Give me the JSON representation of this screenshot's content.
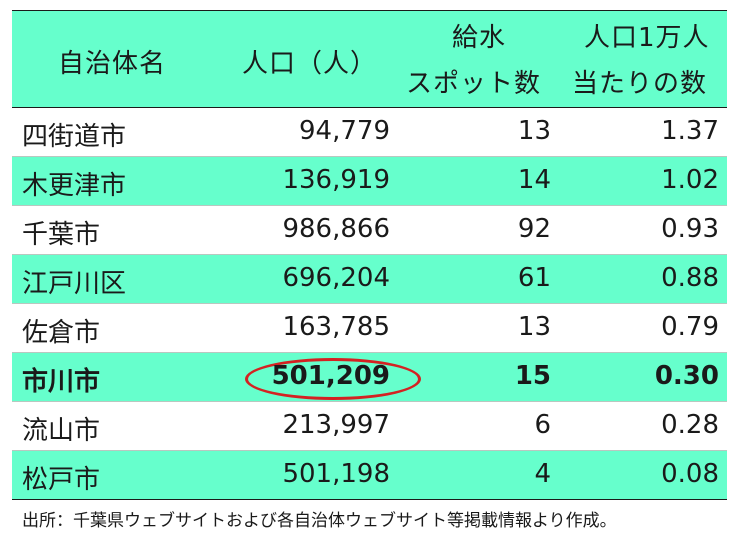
{
  "header": {
    "name": "自治体名",
    "population": "人口（人）",
    "spots_line1": "給水",
    "spots_line2": "スポット数",
    "per_line1": "人口1万人",
    "per_line2": "当たりの数"
  },
  "rows": [
    {
      "name": "四街道市",
      "population": "94,779",
      "spots": "13",
      "per": "1.37"
    },
    {
      "name": "木更津市",
      "population": "136,919",
      "spots": "14",
      "per": "1.02"
    },
    {
      "name": "千葉市",
      "population": "986,866",
      "spots": "92",
      "per": "0.93"
    },
    {
      "name": "江戸川区",
      "population": "696,204",
      "spots": "61",
      "per": "0.88"
    },
    {
      "name": "佐倉市",
      "population": "163,785",
      "spots": "13",
      "per": "0.79"
    },
    {
      "name": "市川市",
      "population": "501,209",
      "spots": "15",
      "per": "0.30"
    },
    {
      "name": "流山市",
      "population": "213,997",
      "spots": "6",
      "per": "0.28"
    },
    {
      "name": "松戸市",
      "population": "501,198",
      "spots": "4",
      "per": "0.08"
    }
  ],
  "highlight_color": "#d42222",
  "stripe_color": "#66ffcc",
  "source": "出所：千葉県ウェブサイトおよび各自治体ウェブサイト等掲載情報より作成。"
}
